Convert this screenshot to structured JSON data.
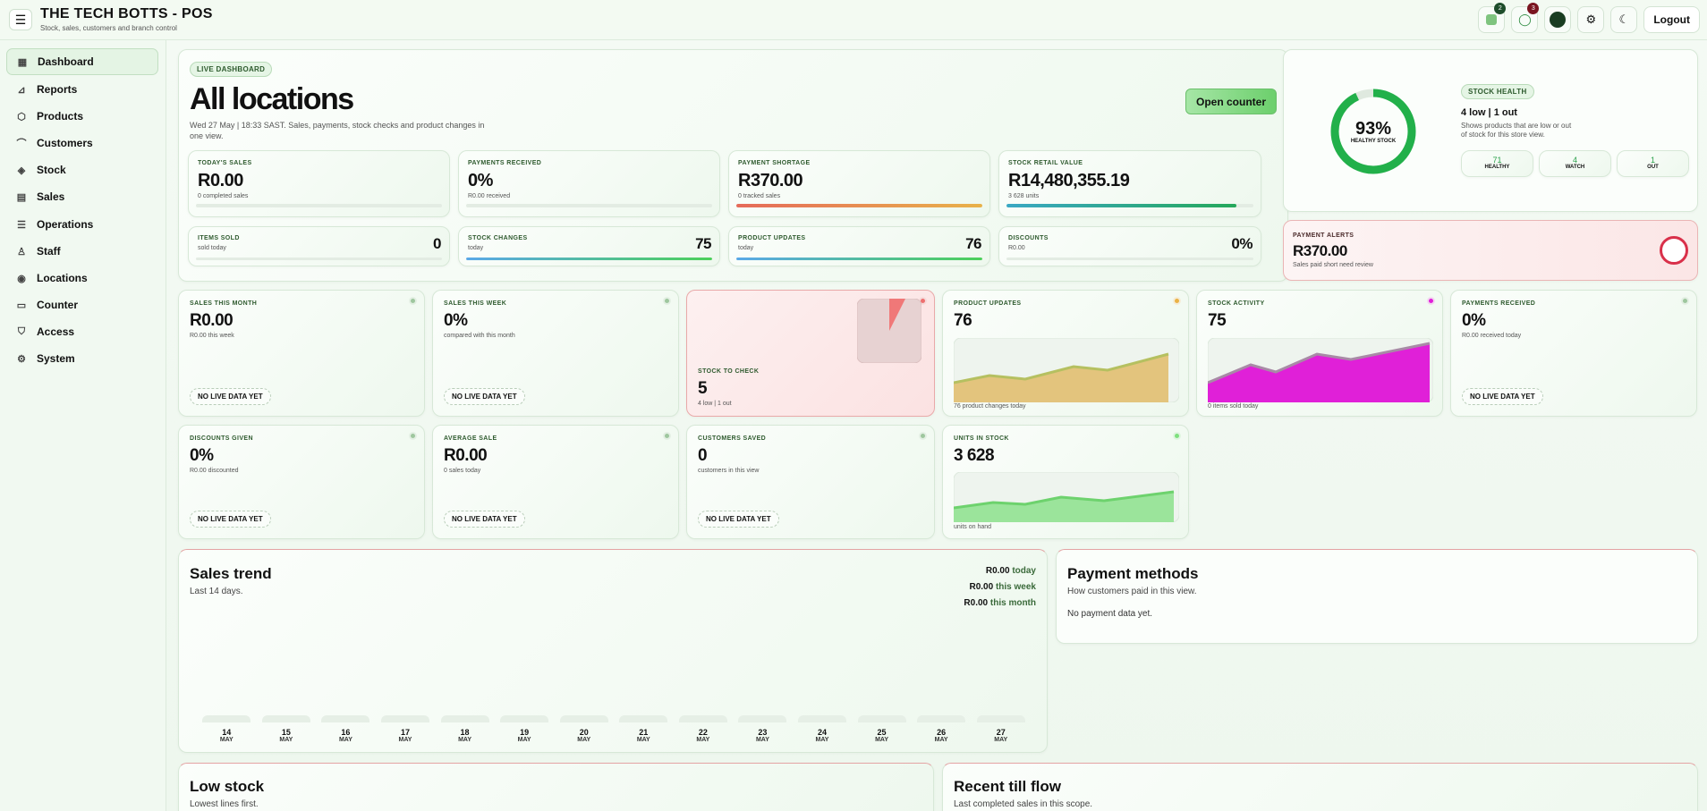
{
  "app": {
    "title": "THE TECH BOTTS - POS",
    "subtitle": "Stock, sales, customers and branch control"
  },
  "topbar": {
    "badges": {
      "alerts": "2",
      "messages": "3"
    },
    "logout": "Logout"
  },
  "sidebar": {
    "items": [
      {
        "label": "Dashboard",
        "icon": "grid-icon"
      },
      {
        "label": "Reports",
        "icon": "chart-icon"
      },
      {
        "label": "Products",
        "icon": "box-icon"
      },
      {
        "label": "Customers",
        "icon": "users-icon"
      },
      {
        "label": "Stock",
        "icon": "layers-icon"
      },
      {
        "label": "Sales",
        "icon": "receipt-icon"
      },
      {
        "label": "Operations",
        "icon": "sliders-icon"
      },
      {
        "label": "Staff",
        "icon": "user-icon"
      },
      {
        "label": "Locations",
        "icon": "pin-icon"
      },
      {
        "label": "Counter",
        "icon": "monitor-icon"
      },
      {
        "label": "Access",
        "icon": "shield-icon"
      },
      {
        "label": "System",
        "icon": "gear-icon"
      }
    ]
  },
  "hero": {
    "pill": "LIVE DASHBOARD",
    "title": "All locations",
    "desc": "Wed 27 May | 18:33 SAST. Sales, payments, stock checks and product changes in one view.",
    "open_counter": "Open counter",
    "stats": [
      {
        "label": "TODAY'S SALES",
        "value": "R0.00",
        "sub": "0 completed sales",
        "progress": 0
      },
      {
        "label": "PAYMENTS RECEIVED",
        "value": "0%",
        "sub": "R0.00 received",
        "progress": 0
      },
      {
        "label": "PAYMENT SHORTAGE",
        "value": "R370.00",
        "sub": "0 tracked sales",
        "progress": 1
      },
      {
        "label": "STOCK RETAIL VALUE",
        "value": "R14,480,355.19",
        "sub": "3 628 units",
        "progress": 0.93
      }
    ],
    "mini": [
      {
        "label": "ITEMS SOLD",
        "sub": "sold today",
        "value": "0",
        "progress": 0
      },
      {
        "label": "STOCK CHANGES",
        "sub": "today",
        "value": "75",
        "progress": 1
      },
      {
        "label": "PRODUCT UPDATES",
        "sub": "today",
        "value": "76",
        "progress": 1
      },
      {
        "label": "DISCOUNTS",
        "sub": "R0.00",
        "value": "0%",
        "progress": 0
      }
    ]
  },
  "health": {
    "percent": "93%",
    "percent_value": 0.93,
    "ring_label": "HEALTHY STOCK",
    "pill": "STOCK HEALTH",
    "headline": "4 low | 1 out",
    "desc": "Shows products that are low or out of stock for this store view.",
    "counts": [
      {
        "value": "71",
        "label": "HEALTHY"
      },
      {
        "value": "4",
        "label": "WATCH"
      },
      {
        "value": "1",
        "label": "OUT"
      }
    ]
  },
  "payment_alerts": {
    "label": "PAYMENT ALERTS",
    "value": "R370.00",
    "sub": "Sales paid short need review"
  },
  "tiles": [
    {
      "label": "SALES THIS MONTH",
      "value": "R0.00",
      "sub": "R0.00 this week",
      "badge": "NO LIVE DATA YET"
    },
    {
      "label": "SALES THIS WEEK",
      "value": "0%",
      "sub": "compared with this month",
      "badge": "NO LIVE DATA YET"
    },
    {
      "label": "STOCK TO CHECK",
      "value": "5",
      "sub": "4 low | 1 out"
    },
    {
      "label": "PRODUCT UPDATES",
      "value": "76",
      "sub": "76 product changes today"
    },
    {
      "label": "STOCK ACTIVITY",
      "value": "75",
      "sub": "0 items sold today"
    },
    {
      "label": "PAYMENTS RECEIVED",
      "value": "0%",
      "sub": "R0.00 received today",
      "badge": "NO LIVE DATA YET"
    },
    {
      "label": "DISCOUNTS GIVEN",
      "value": "0%",
      "sub": "R0.00 discounted",
      "badge": "NO LIVE DATA YET"
    },
    {
      "label": "AVERAGE SALE",
      "value": "R0.00",
      "sub": "0 sales today",
      "badge": "NO LIVE DATA YET"
    },
    {
      "label": "CUSTOMERS SAVED",
      "value": "0",
      "sub": "customers in this view",
      "badge": "NO LIVE DATA YET"
    },
    {
      "label": "UNITS IN STOCK",
      "value": "3 628",
      "sub": "units on hand"
    }
  ],
  "sales_trend": {
    "title": "Sales trend",
    "sub": "Last 14 days.",
    "today_val": "R0.00",
    "today": "today",
    "week_val": "R0.00",
    "week": "this week",
    "month_val": "R0.00",
    "month": "this month",
    "days": [
      "14",
      "15",
      "16",
      "17",
      "18",
      "19",
      "20",
      "21",
      "22",
      "23",
      "24",
      "25",
      "26",
      "27"
    ],
    "month_label": "MAY"
  },
  "payment_methods": {
    "title": "Payment methods",
    "sub": "How customers paid in this view.",
    "empty": "No payment data yet."
  },
  "low_stock": {
    "title": "Low stock",
    "sub": "Lowest lines first."
  },
  "till_flow": {
    "title": "Recent till flow",
    "sub": "Last completed sales in this scope."
  },
  "colors": {
    "accent": "#22b04a",
    "danger": "#d9304a",
    "magenta": "#e020d8",
    "orange": "#e0a040"
  }
}
